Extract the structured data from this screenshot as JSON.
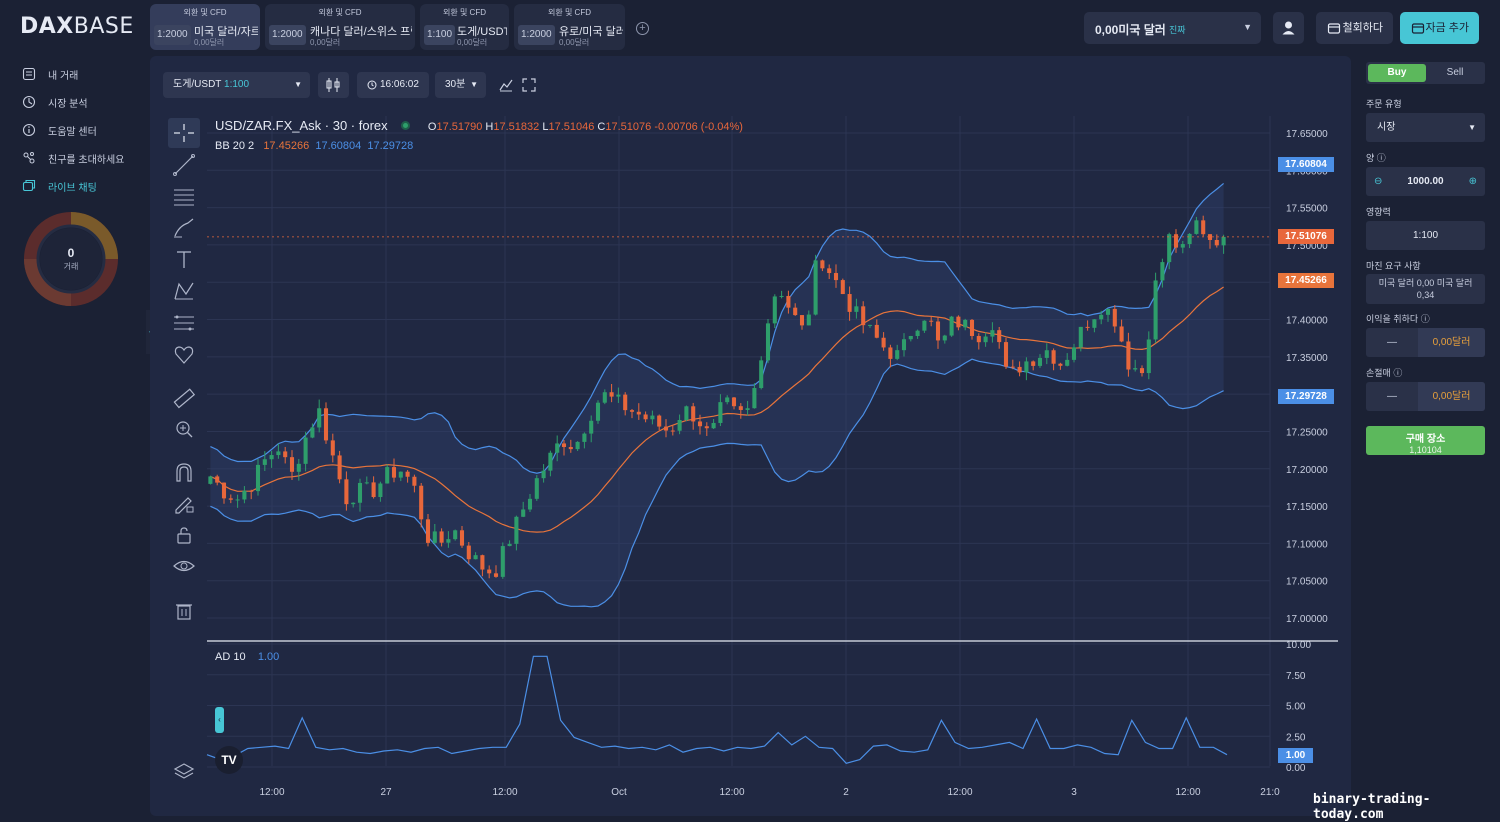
{
  "brand": {
    "logo_prefix": "DAX",
    "logo_suffix": "BASE"
  },
  "tabs": [
    {
      "category": "외환 및 CFD",
      "leverage": "1:2000",
      "name": "미국 달러/자르",
      "balance": "0,00달러",
      "active": true
    },
    {
      "category": "외환 및 CFD",
      "leverage": "1:2000",
      "name": "캐나다 달러/스위스 프랑",
      "balance": "0,00달러",
      "active": false
    },
    {
      "category": "외환 및 CFD",
      "leverage": "1:100",
      "name": "도게/USDT",
      "balance": "0,00달러",
      "active": false
    },
    {
      "category": "외환 및 CFD",
      "leverage": "1:2000",
      "name": "유로/미국 달러",
      "balance": "0,00달러",
      "active": false
    }
  ],
  "header": {
    "account_amount": "0,00미국 달러",
    "account_type": "진짜",
    "withdraw_label": "철회하다",
    "deposit_label": "자금 추가"
  },
  "sidebar": {
    "items": [
      {
        "label": "내 거래",
        "icon": "trades-icon"
      },
      {
        "label": "시장 분석",
        "icon": "analysis-icon"
      },
      {
        "label": "도움말 센터",
        "icon": "help-icon"
      },
      {
        "label": "친구를 초대하세요",
        "icon": "invite-icon"
      },
      {
        "label": "라이브 채팅",
        "icon": "chat-icon"
      }
    ],
    "trades_count": "0",
    "trades_label": "거래"
  },
  "chart_toolbar": {
    "symbol": "도게/USDT",
    "symbol_leverage": "1:100",
    "time": "16:06:02",
    "interval": "30분"
  },
  "chart_legend": {
    "title": "USD/ZAR.FX_Ask · 30 · forex",
    "o_label": "O",
    "o": "17.51790",
    "h_label": "H",
    "h": "17.51832",
    "l_label": "L",
    "l": "17.51046",
    "c_label": "C",
    "c": "17.51076",
    "change": "-0.00706 (-0.04%)",
    "bb_label": "BB 20 2",
    "bb_mid": "17.45266",
    "bb_upper": "17.60804",
    "bb_lower": "17.29728",
    "ad_label": "AD 10",
    "ad_value": "1.00"
  },
  "price_tags": {
    "upper": "17.60804",
    "last": "17.51076",
    "mid": "17.45266",
    "lower": "17.29728",
    "ad": "1.00"
  },
  "colors": {
    "up": "#2e9e6b",
    "down": "#e8673b",
    "band": "#4b8fe6",
    "mid": "#e8743b",
    "accent": "#47c6d5",
    "buy": "#5cb85c"
  },
  "chart_data": {
    "type": "candlestick",
    "title": "USD/ZAR.FX_Ask · 30 · forex",
    "y_ticks": [
      "17.65000",
      "17.60000",
      "17.55000",
      "17.50000",
      "17.45000",
      "17.40000",
      "17.35000",
      "17.30000",
      "17.25000",
      "17.20000",
      "17.15000",
      "17.10000",
      "17.05000",
      "17.00000"
    ],
    "ylim": [
      16.98,
      17.665
    ],
    "x_ticks": [
      "12:00",
      "27",
      "12:00",
      "Oct",
      "12:00",
      "2",
      "12:00",
      "3",
      "12:00",
      "21:0"
    ],
    "close_path": [
      17.19,
      17.17,
      17.16,
      17.18,
      17.21,
      17.23,
      17.19,
      17.24,
      17.28,
      17.22,
      17.16,
      17.17,
      17.17,
      17.19,
      17.2,
      17.18,
      17.11,
      17.1,
      17.12,
      17.09,
      17.07,
      17.06,
      17.1,
      17.14,
      17.18,
      17.21,
      17.24,
      17.23,
      17.27,
      17.3,
      17.29,
      17.28,
      17.27,
      17.26,
      17.25,
      17.28,
      17.27,
      17.24,
      17.29,
      17.27,
      17.28,
      17.38,
      17.45,
      17.41,
      17.38,
      17.49,
      17.46,
      17.43,
      17.4,
      17.38,
      17.36,
      17.35,
      17.39,
      17.41,
      17.36,
      17.4,
      17.39,
      17.38,
      17.4,
      17.32,
      17.34,
      17.35,
      17.36,
      17.34,
      17.37,
      17.4,
      17.42,
      17.4,
      17.34,
      17.33,
      17.45,
      17.51,
      17.49,
      17.53,
      17.51,
      17.51
    ],
    "ad_ylim": [
      0,
      10
    ],
    "ad_y_ticks": [
      "10.00",
      "7.50",
      "5.00",
      "2.50",
      "0.00"
    ],
    "ad_values": [
      1.0,
      0.6,
      0.9,
      1.5,
      1.6,
      1.7,
      1.5,
      4.0,
      1.6,
      1.4,
      1.5,
      1.2,
      1.1,
      1.3,
      1.4,
      1.2,
      1.5,
      1.6,
      1.1,
      1.3,
      1.5,
      1.6,
      1.6,
      3.5,
      9.0,
      9.0,
      3.8,
      2.4,
      2.0,
      1.6,
      1.7,
      1.5,
      1.6,
      1.4,
      1.8,
      1.2,
      1.5,
      1.6,
      1.3,
      1.6,
      1.5,
      1.7,
      2.8,
      1.8,
      2.5,
      1.6,
      1.5,
      0.3,
      0.6,
      1.7,
      1.8,
      1.3,
      1.2,
      1.4,
      3.8,
      2.0,
      1.5,
      1.6,
      1.8,
      2.0,
      1.5,
      3.9,
      1.5,
      1.5,
      1.8,
      1.6,
      1.1,
      1.0,
      3.8,
      2.0,
      1.5,
      1.5,
      4.0,
      1.6,
      1.6,
      1.0
    ]
  },
  "order_panel": {
    "buy_tab": "Buy",
    "sell_tab": "Sell",
    "order_type_label": "주문 유형",
    "order_type_value": "시장",
    "amount_label": "양",
    "amount_value": "1000.00",
    "leverage_label": "영향력",
    "leverage_value": "1:100",
    "margin_label": "마진 요구 사항",
    "margin_value": "미국 달러 0,00 미국 달러 0,34",
    "take_profit_label": "이익을 취하다",
    "take_profit_value": "0,00달러",
    "stop_loss_label": "손절매",
    "stop_loss_value": "0,00달러",
    "buy_button_label": "구매 장소",
    "buy_button_price": "1,10104"
  },
  "watermark": "binary-trading-today.com",
  "tv_badge": "TV"
}
